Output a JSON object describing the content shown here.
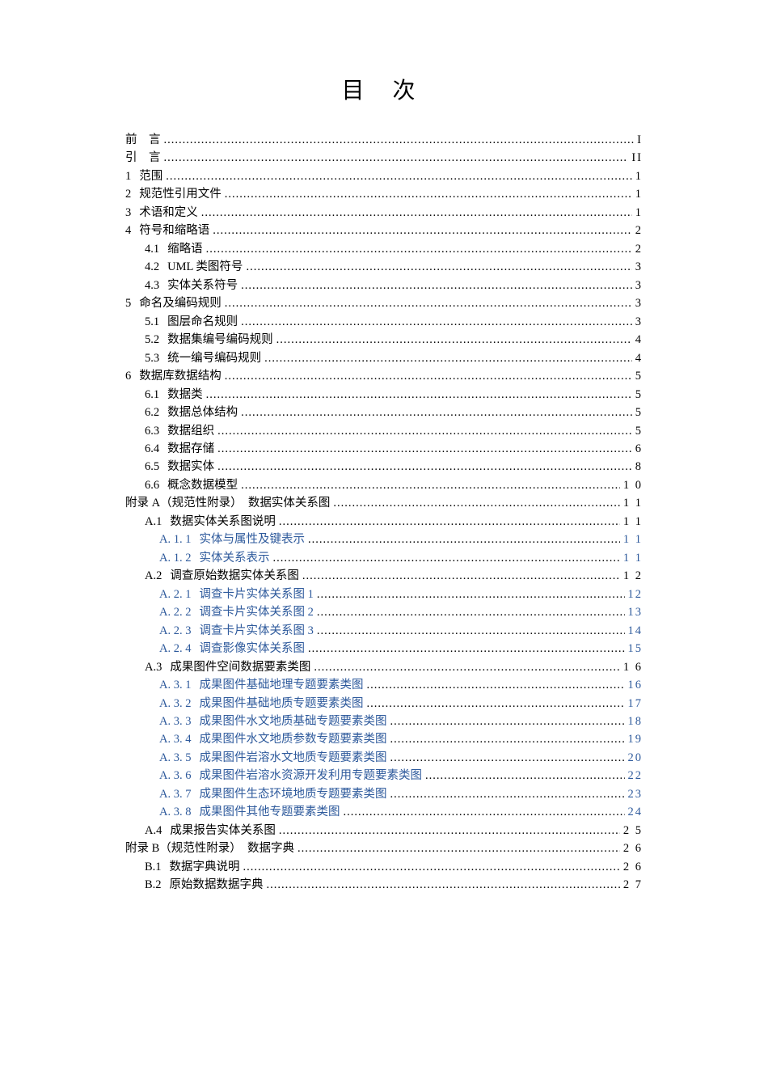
{
  "title": "目 次",
  "text_color": "#000000",
  "link_color": "#2e5a9c",
  "background_color": "#ffffff",
  "base_fontsize": 14.5,
  "title_fontsize": 28,
  "entries": [
    {
      "num": "",
      "label": "前　言",
      "page": "I",
      "indent": 0,
      "blue": false,
      "spaced": true
    },
    {
      "num": "",
      "label": "引　言",
      "page": "II",
      "indent": 0,
      "blue": false,
      "spaced": true
    },
    {
      "num": "1",
      "label": "范围",
      "page": "1",
      "indent": 0,
      "blue": false
    },
    {
      "num": "2",
      "label": "规范性引用文件",
      "page": "1",
      "indent": 0,
      "blue": false
    },
    {
      "num": "3",
      "label": "术语和定义",
      "page": "1",
      "indent": 0,
      "blue": false
    },
    {
      "num": "4",
      "label": "符号和缩略语",
      "page": "2",
      "indent": 0,
      "blue": false
    },
    {
      "num": "4.1",
      "label": "缩略语",
      "page": "2",
      "indent": 1,
      "blue": false
    },
    {
      "num": "4.2",
      "label": "UML 类图符号",
      "page": "3",
      "indent": 1,
      "blue": false
    },
    {
      "num": "4.3",
      "label": "实体关系符号",
      "page": "3",
      "indent": 1,
      "blue": false
    },
    {
      "num": "5",
      "label": "命名及编码规则",
      "page": "3",
      "indent": 0,
      "blue": false
    },
    {
      "num": "5.1",
      "label": "图层命名规则",
      "page": "3",
      "indent": 1,
      "blue": false
    },
    {
      "num": "5.2",
      "label": "数据集编号编码规则",
      "page": "4",
      "indent": 1,
      "blue": false
    },
    {
      "num": "5.3",
      "label": "统一编号编码规则",
      "page": "4",
      "indent": 1,
      "blue": false
    },
    {
      "num": "6",
      "label": "数据库数据结构",
      "page": "5",
      "indent": 0,
      "blue": false
    },
    {
      "num": "6.1",
      "label": "数据类",
      "page": "5",
      "indent": 1,
      "blue": false
    },
    {
      "num": "6.2",
      "label": "数据总体结构",
      "page": "5",
      "indent": 1,
      "blue": false
    },
    {
      "num": "6.3",
      "label": "数据组织",
      "page": "5",
      "indent": 1,
      "blue": false
    },
    {
      "num": "6.4",
      "label": "数据存储",
      "page": "6",
      "indent": 1,
      "blue": false
    },
    {
      "num": "6.5",
      "label": "数据实体",
      "page": "8",
      "indent": 1,
      "blue": false
    },
    {
      "num": "6.6",
      "label": "概念数据模型",
      "page": "1 0",
      "indent": 1,
      "blue": false
    },
    {
      "num": "",
      "label": "附录 A（规范性附录）　数据实体关系图",
      "page": "1 1",
      "indent": 0,
      "blue": false
    },
    {
      "num": "A.1",
      "label": "数据实体关系图说明",
      "page": "1 1",
      "indent": 1,
      "blue": false
    },
    {
      "num": "A. 1. 1",
      "label": "实体与属性及键表示",
      "page": "1 1",
      "indent": 2,
      "blue": true
    },
    {
      "num": "A. 1. 2",
      "label": "实体关系表示",
      "page": "1 1",
      "indent": 2,
      "blue": true
    },
    {
      "num": "A.2",
      "label": "调查原始数据实体关系图",
      "page": "1 2",
      "indent": 1,
      "blue": false
    },
    {
      "num": "A. 2. 1",
      "label": "调查卡片实体关系图 1",
      "page": "12",
      "indent": 2,
      "blue": true
    },
    {
      "num": "A. 2. 2",
      "label": "调查卡片实体关系图 2",
      "page": "13",
      "indent": 2,
      "blue": true
    },
    {
      "num": "A. 2. 3",
      "label": "调查卡片实体关系图 3",
      "page": "14",
      "indent": 2,
      "blue": true
    },
    {
      "num": "A. 2. 4",
      "label": "调查影像实体关系图",
      "page": "15",
      "indent": 2,
      "blue": true
    },
    {
      "num": "A.3",
      "label": "成果图件空间数据要素类图",
      "page": "1 6",
      "indent": 1,
      "blue": false
    },
    {
      "num": "A. 3. 1",
      "label": "成果图件基础地理专题要素类图",
      "page": "16",
      "indent": 2,
      "blue": true
    },
    {
      "num": "A. 3. 2",
      "label": "成果图件基础地质专题要素类图",
      "page": "17",
      "indent": 2,
      "blue": true
    },
    {
      "num": "A. 3. 3",
      "label": "成果图件水文地质基础专题要素类图",
      "page": "18",
      "indent": 2,
      "blue": true
    },
    {
      "num": "A. 3. 4",
      "label": "成果图件水文地质参数专题要素类图",
      "page": "19",
      "indent": 2,
      "blue": true
    },
    {
      "num": "A. 3. 5",
      "label": "成果图件岩溶水文地质专题要素类图",
      "page": "20",
      "indent": 2,
      "blue": true
    },
    {
      "num": "A. 3. 6",
      "label": "成果图件岩溶水资源开发利用专题要素类图",
      "page": "22",
      "indent": 2,
      "blue": true
    },
    {
      "num": "A. 3. 7",
      "label": "成果图件生态环境地质专题要素类图",
      "page": "23",
      "indent": 2,
      "blue": true
    },
    {
      "num": "A. 3. 8",
      "label": "成果图件其他专题要素类图",
      "page": "24",
      "indent": 2,
      "blue": true
    },
    {
      "num": "A.4",
      "label": "成果报告实体关系图",
      "page": "2 5",
      "indent": 1,
      "blue": false
    },
    {
      "num": "",
      "label": "附录 B（规范性附录）　数据字典",
      "page": "2 6",
      "indent": 0,
      "blue": false
    },
    {
      "num": "B.1",
      "label": "数据字典说明",
      "page": "2 6",
      "indent": 1,
      "blue": false
    },
    {
      "num": "B.2",
      "label": "原始数据数据字典",
      "page": "2 7",
      "indent": 1,
      "blue": false
    }
  ]
}
